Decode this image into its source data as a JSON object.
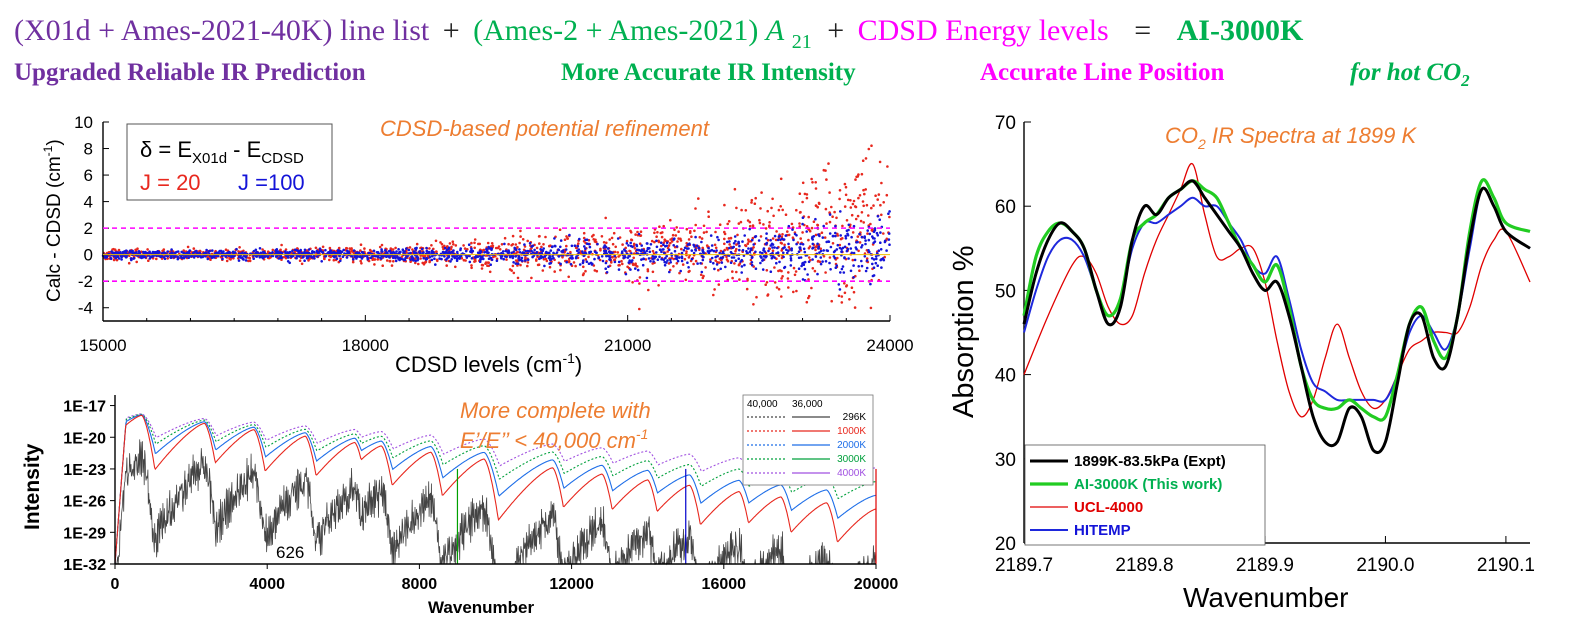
{
  "header": {
    "line1": {
      "part_a": "(X01d + Ames-2021-40K) line list",
      "plus1": "+",
      "part_b": "(Ames-2 + Ames-2021) ",
      "part_b_sym": "A",
      "part_b_sub": "21",
      "plus2": "+",
      "part_c": "CDSD Energy levels",
      "equals": "=",
      "result": "AI-3000K"
    },
    "line2": {
      "a": "Upgraded Reliable IR Prediction",
      "b": "More Accurate IR Intensity",
      "c": "Accurate Line Position",
      "d": "for hot CO",
      "d_sub": "2"
    },
    "colors": {
      "purple": "#7030a0",
      "green": "#00b050",
      "magenta": "#ff00ff",
      "orange": "#ed7d31"
    }
  },
  "chart_data": [
    {
      "type": "scatter",
      "title": "CDSD-based potential refinement",
      "xlabel": "CDSD levels (cm",
      "xlabel_sup": "-1",
      "xlabel_end": ")",
      "ylabel": "Calc - CDSD (cm",
      "ylabel_sup": "-1",
      "ylabel_end": ")",
      "xlim": [
        15000,
        24000
      ],
      "ylim": [
        -5,
        10
      ],
      "x_ticks": [
        "15000",
        "18000",
        "21000",
        "24000"
      ],
      "y_ticks": [
        "-4",
        "-2",
        "0",
        "2",
        "4",
        "6",
        "8",
        "10"
      ],
      "legend": {
        "delta_lhs": "δ = E",
        "sub1": "X01d",
        "mid": " - E",
        "sub2": "CDSD",
        "j20": "J =  20",
        "j100": "J =100"
      },
      "reference_lines": [
        2,
        -2
      ],
      "series": [
        {
          "name": "J = 20",
          "color": "#e8281e",
          "x_range": [
            15000,
            24000
          ],
          "spread_start": 0.35,
          "spread_end": 5.5
        },
        {
          "name": "J = 100",
          "color": "#1414d8",
          "x_range": [
            15000,
            24000
          ],
          "spread_start": 0.3,
          "spread_end": 2.4
        }
      ]
    },
    {
      "type": "line",
      "xlabel": "Wavenumber",
      "ylabel": "Intensity",
      "xlim": [
        0,
        20000
      ],
      "ylim_log10": [
        -32,
        -16
      ],
      "x_ticks": [
        "0",
        "4000",
        "8000",
        "12000",
        "16000",
        "20000"
      ],
      "y_ticks": [
        "1E-17",
        "1E-20",
        "1E-23",
        "1E-26",
        "1E-29",
        "1E-32"
      ],
      "annotation_626": "626",
      "note_line1": "More complete with",
      "note_line2": "E’/E’’ < 40,000 cm",
      "note_sup": "-1",
      "vertical_markers": [
        {
          "x": 9000,
          "color": "#00a000"
        },
        {
          "x": 15000,
          "color": "#0000cc"
        },
        {
          "x": 20000,
          "color": "#e00000"
        }
      ],
      "legend": {
        "col1": "40,000",
        "col2": "36,000",
        "items": [
          {
            "label": "296K",
            "color": "#444444"
          },
          {
            "label": "1000K",
            "color": "#e8281e"
          },
          {
            "label": "2000K",
            "color": "#1e6ee8"
          },
          {
            "label": "3000K",
            "color": "#00a03c"
          },
          {
            "label": "4000K",
            "color": "#a050e0"
          }
        ]
      }
    },
    {
      "type": "line",
      "title": "CO",
      "title_sub": "2",
      "title_rest": " IR Spectra at 1899 K",
      "xlabel": "Wavenumber",
      "ylabel": "Absorption %",
      "xlim": [
        2189.7,
        2190.12
      ],
      "ylim": [
        20,
        70
      ],
      "x_ticks": [
        "2189.7",
        "2189.8",
        "2189.9",
        "2190.0",
        "2190.1"
      ],
      "y_ticks": [
        "20",
        "30",
        "40",
        "50",
        "60",
        "70"
      ],
      "series": [
        {
          "name": "1899K-83.5kPa (Expt)",
          "color": "#000000",
          "x": [
            2189.7,
            2189.71,
            2189.72,
            2189.73,
            2189.74,
            2189.75,
            2189.76,
            2189.77,
            2189.78,
            2189.79,
            2189.8,
            2189.81,
            2189.82,
            2189.83,
            2189.84,
            2189.85,
            2189.86,
            2189.87,
            2189.88,
            2189.89,
            2189.9,
            2189.91,
            2189.92,
            2189.93,
            2189.94,
            2189.95,
            2189.96,
            2189.97,
            2189.98,
            2189.99,
            2190.0,
            2190.01,
            2190.02,
            2190.03,
            2190.04,
            2190.05,
            2190.06,
            2190.07,
            2190.08,
            2190.09,
            2190.1,
            2190.12
          ],
          "y": [
            46,
            52,
            56,
            58,
            57,
            55,
            50,
            46,
            48,
            56,
            60,
            59,
            61,
            62,
            63,
            61,
            59,
            57,
            55,
            52,
            50,
            51,
            47,
            41,
            35,
            32,
            32,
            36,
            35,
            31,
            32,
            39,
            46,
            47,
            42,
            41,
            47,
            56,
            62,
            60,
            57,
            55
          ]
        },
        {
          "name": "AI-3000K (This work)",
          "color": "#22cc22",
          "x": [
            2189.7,
            2189.71,
            2189.72,
            2189.73,
            2189.74,
            2189.75,
            2189.76,
            2189.77,
            2189.78,
            2189.79,
            2189.8,
            2189.81,
            2189.82,
            2189.83,
            2189.84,
            2189.85,
            2189.86,
            2189.87,
            2189.88,
            2189.89,
            2189.9,
            2189.91,
            2189.92,
            2189.93,
            2189.94,
            2189.95,
            2189.96,
            2189.97,
            2189.98,
            2189.99,
            2190.0,
            2190.01,
            2190.02,
            2190.03,
            2190.04,
            2190.05,
            2190.06,
            2190.07,
            2190.08,
            2190.09,
            2190.1,
            2190.12
          ],
          "y": [
            47,
            54,
            57,
            58,
            57,
            55,
            50,
            47,
            49,
            56,
            58,
            59,
            61,
            62,
            63,
            62,
            61,
            58,
            55,
            53,
            51,
            53,
            48,
            41,
            37,
            36,
            36,
            37,
            36,
            35,
            35,
            40,
            46,
            48,
            44,
            42,
            47,
            57,
            63,
            61,
            58,
            57
          ]
        },
        {
          "name": "UCL-4000",
          "color": "#e00000",
          "x": [
            2189.7,
            2189.72,
            2189.74,
            2189.75,
            2189.76,
            2189.77,
            2189.78,
            2189.79,
            2189.8,
            2189.81,
            2189.82,
            2189.83,
            2189.84,
            2189.85,
            2189.86,
            2189.87,
            2189.88,
            2189.89,
            2189.9,
            2189.91,
            2189.92,
            2189.93,
            2189.94,
            2189.95,
            2189.96,
            2189.97,
            2189.98,
            2189.99,
            2190.0,
            2190.01,
            2190.02,
            2190.03,
            2190.04,
            2190.05,
            2190.06,
            2190.07,
            2190.08,
            2190.09,
            2190.1,
            2190.12
          ],
          "y": [
            40,
            47,
            53,
            54,
            52,
            48,
            46,
            47,
            52,
            56,
            59,
            62,
            65,
            59,
            54,
            54,
            55,
            55,
            51,
            44,
            38,
            35,
            37,
            42,
            46,
            42,
            38,
            36,
            37,
            40,
            43,
            44,
            45,
            45,
            45,
            48,
            53,
            56,
            57,
            51
          ]
        },
        {
          "name": "HITEMP",
          "color": "#1e28dc",
          "x": [
            2189.7,
            2189.71,
            2189.72,
            2189.73,
            2189.74,
            2189.75,
            2189.76,
            2189.77,
            2189.78,
            2189.79,
            2189.8,
            2189.81,
            2189.82,
            2189.83,
            2189.84,
            2189.85,
            2189.86,
            2189.87,
            2189.88,
            2189.89,
            2189.9,
            2189.91,
            2189.92,
            2189.93,
            2189.94,
            2189.95,
            2189.96,
            2189.97,
            2189.98,
            2189.99,
            2190.0,
            2190.01,
            2190.02,
            2190.03,
            2190.04,
            2190.05,
            2190.06,
            2190.07,
            2190.08,
            2190.09,
            2190.1,
            2190.12
          ],
          "y": [
            45,
            50,
            54,
            56,
            56,
            54,
            50,
            47,
            49,
            55,
            58,
            58,
            59,
            60,
            61,
            60,
            60,
            58,
            56,
            53,
            52,
            54,
            49,
            43,
            39,
            38,
            37,
            37,
            37,
            37,
            37,
            40,
            45,
            47,
            45,
            43,
            47,
            55,
            62,
            60,
            57,
            55
          ]
        }
      ]
    }
  ]
}
